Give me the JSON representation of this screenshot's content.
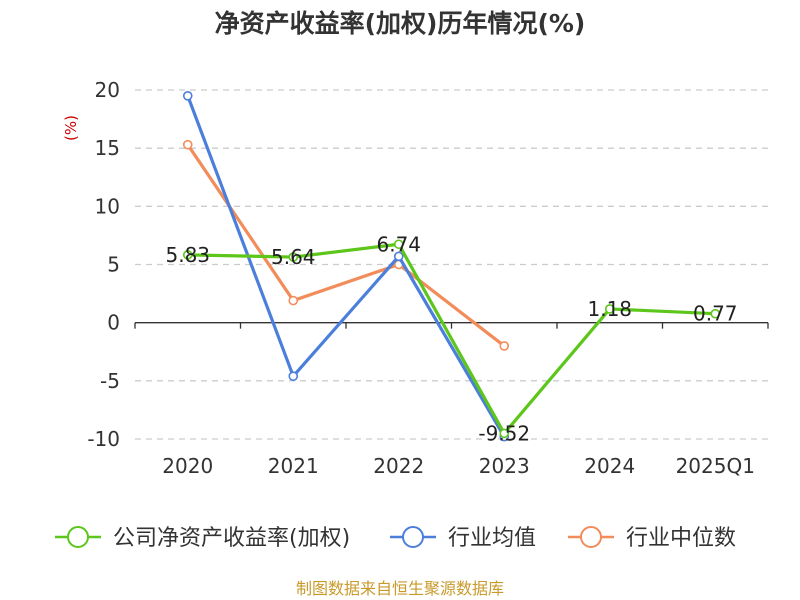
{
  "title": "净资产收益率(加权)历年情况(%)",
  "footer": "制图数据来自恒生聚源数据库",
  "chart_data": {
    "type": "line",
    "title": "净资产收益率(加权)历年情况(%)",
    "ylabel": "(%)",
    "categories": [
      "2020",
      "2021",
      "2022",
      "2023",
      "2024",
      "2025Q1"
    ],
    "ylim": [
      -10,
      20
    ],
    "yticks": [
      20,
      15,
      10,
      5,
      0,
      -5,
      -10
    ],
    "grid": true,
    "legend_position": "bottom",
    "series": [
      {
        "name": "公司净资产收益率(加权)",
        "color": "#5cc61a",
        "values": [
          5.83,
          5.64,
          6.74,
          -9.52,
          1.18,
          0.77
        ],
        "labels": [
          "5.83",
          "5.64",
          "6.74",
          "-9.52",
          "1.18",
          "0.77"
        ]
      },
      {
        "name": "行业均值",
        "color": "#4b7fdb",
        "values": [
          19.5,
          -4.6,
          5.7,
          -9.8,
          null,
          null
        ]
      },
      {
        "name": "行业中位数",
        "color": "#f28c5a",
        "values": [
          15.3,
          1.9,
          5.0,
          -2.0,
          null,
          null
        ]
      }
    ]
  }
}
